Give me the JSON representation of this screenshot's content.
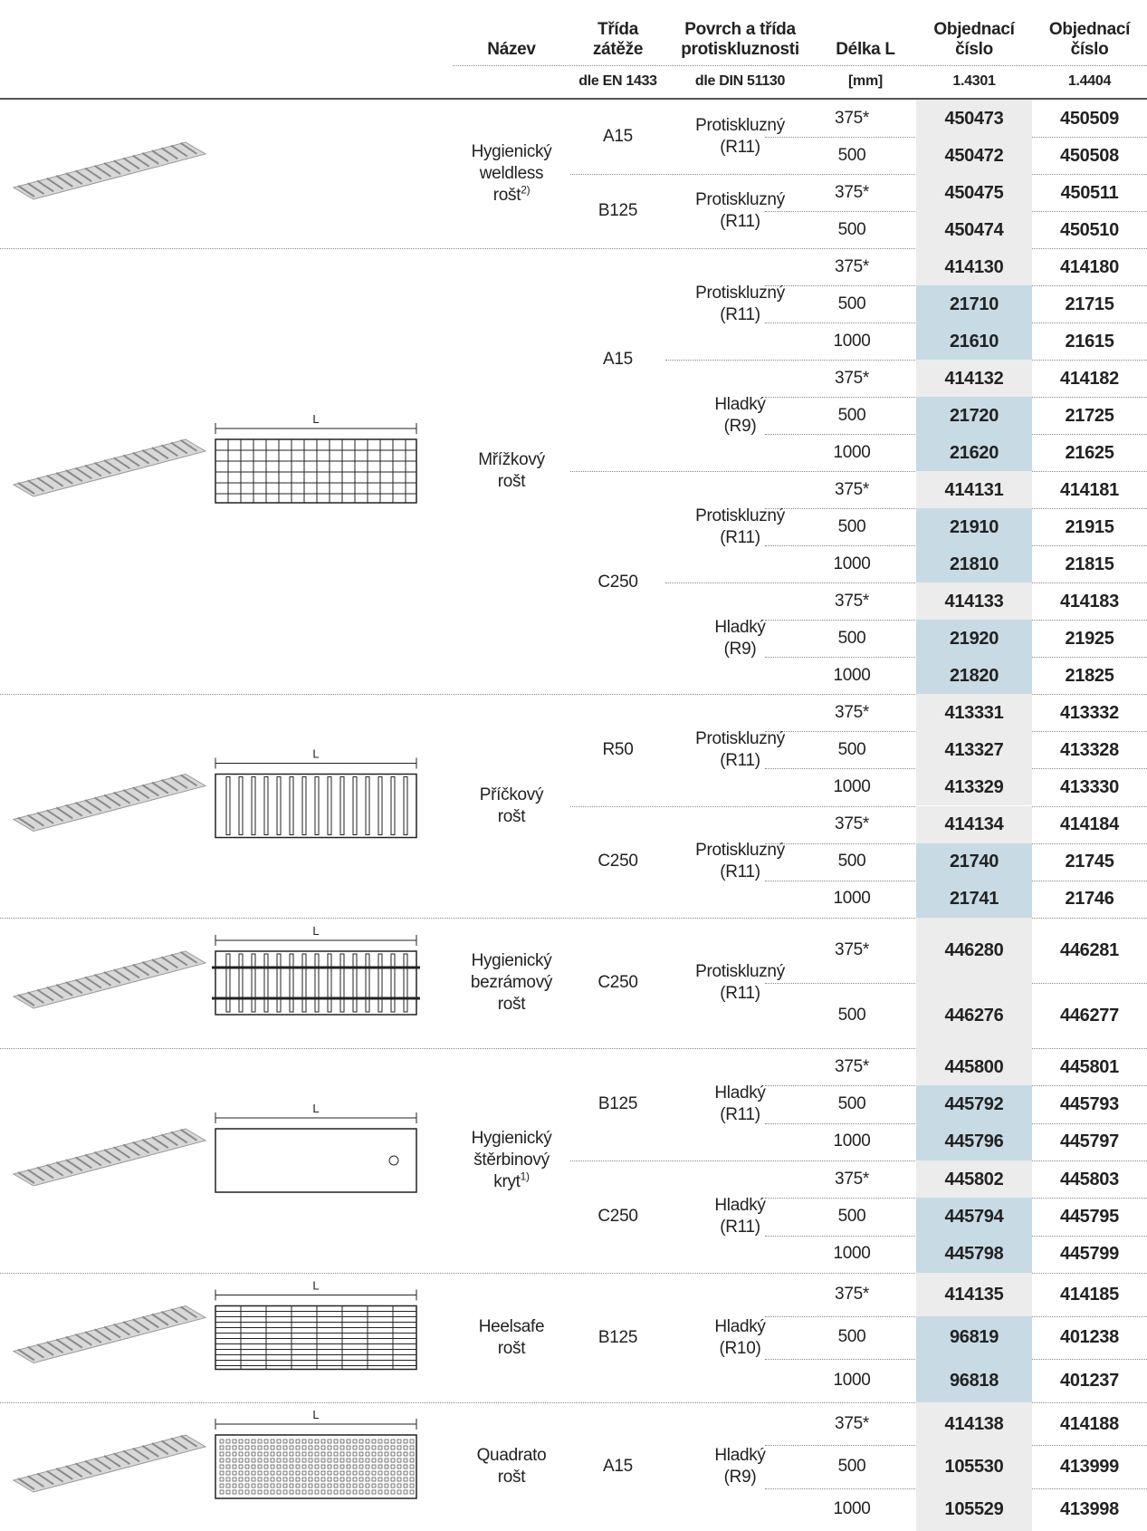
{
  "header": {
    "columns": [
      [
        "Název"
      ],
      [
        "Třída",
        "zátěže"
      ],
      [
        "Povrch a třída",
        "protiskluznosti"
      ],
      [
        "Délka L"
      ],
      [
        "Objednací",
        "číslo"
      ],
      [
        "Objednací",
        "číslo"
      ]
    ],
    "units": [
      "dle EN 1433",
      "dle DIN 51130",
      "[mm]",
      "1.4301",
      "1.4404"
    ]
  },
  "groups": [
    {
      "name": [
        "Hygienický",
        "weldless",
        "rošt"
      ],
      "note": "2)",
      "classes": [
        {
          "class": "A15",
          "surfaces": [
            {
              "surface": [
                "Protiskluzný",
                "(R11)"
              ],
              "rows": [
                {
                  "length": "375*",
                  "n1": 450473,
                  "n2": 450509,
                  "shade": "#ececec"
                },
                {
                  "length": "500",
                  "n1": 450472,
                  "n2": 450508,
                  "shade": "#ececec"
                }
              ]
            }
          ]
        },
        {
          "class": "B125",
          "surfaces": [
            {
              "surface": [
                "Protiskluzný",
                "(R11)"
              ],
              "rows": [
                {
                  "length": "375*",
                  "n1": 450475,
                  "n2": 450511,
                  "shade": "#ececec"
                },
                {
                  "length": "500",
                  "n1": 450474,
                  "n2": 450510,
                  "shade": "#ececec"
                }
              ]
            }
          ]
        }
      ]
    },
    {
      "name": [
        "Mřížkový",
        "rošt"
      ],
      "drawing_label": "L",
      "classes": [
        {
          "class": "A15",
          "surfaces": [
            {
              "surface": [
                "Protiskluzný",
                "(R11)"
              ],
              "rows": [
                {
                  "length": "375*",
                  "n1": 414130,
                  "n2": 414180,
                  "shade": "#ececec"
                },
                {
                  "length": "500",
                  "n1": 21710,
                  "n2": 21715,
                  "shade": "#c8dbe4"
                },
                {
                  "length": "1000",
                  "n1": 21610,
                  "n2": 21615,
                  "shade": "#c8dbe4"
                }
              ]
            },
            {
              "surface": [
                "Hladký",
                "(R9)"
              ],
              "rows": [
                {
                  "length": "375*",
                  "n1": 414132,
                  "n2": 414182,
                  "shade": "#ececec"
                },
                {
                  "length": "500",
                  "n1": 21720,
                  "n2": 21725,
                  "shade": "#c8dbe4"
                },
                {
                  "length": "1000",
                  "n1": 21620,
                  "n2": 21625,
                  "shade": "#c8dbe4"
                }
              ]
            }
          ]
        },
        {
          "class": "C250",
          "surfaces": [
            {
              "surface": [
                "Protiskluzný",
                "(R11)"
              ],
              "rows": [
                {
                  "length": "375*",
                  "n1": 414131,
                  "n2": 414181,
                  "shade": "#ececec"
                },
                {
                  "length": "500",
                  "n1": 21910,
                  "n2": 21915,
                  "shade": "#c8dbe4"
                },
                {
                  "length": "1000",
                  "n1": 21810,
                  "n2": 21815,
                  "shade": "#c8dbe4"
                }
              ]
            },
            {
              "surface": [
                "Hladký",
                "(R9)"
              ],
              "rows": [
                {
                  "length": "375*",
                  "n1": 414133,
                  "n2": 414183,
                  "shade": "#ececec"
                },
                {
                  "length": "500",
                  "n1": 21920,
                  "n2": 21925,
                  "shade": "#c8dbe4"
                },
                {
                  "length": "1000",
                  "n1": 21820,
                  "n2": 21825,
                  "shade": "#c8dbe4"
                }
              ]
            }
          ]
        }
      ]
    },
    {
      "name": [
        "Příčkový",
        "rošt"
      ],
      "drawing_label": "L",
      "classes": [
        {
          "class": "R50",
          "surfaces": [
            {
              "surface": [
                "Protiskluzný",
                "(R11)"
              ],
              "rows": [
                {
                  "length": "375*",
                  "n1": 413331,
                  "n2": 413332,
                  "shade": "#ececec"
                },
                {
                  "length": "500",
                  "n1": 413327,
                  "n2": 413328,
                  "shade": "#ececec"
                },
                {
                  "length": "1000",
                  "n1": 413329,
                  "n2": 413330,
                  "shade": "#ececec"
                }
              ]
            }
          ]
        },
        {
          "class": "C250",
          "surfaces": [
            {
              "surface": [
                "Protiskluzný",
                "(R11)"
              ],
              "rows": [
                {
                  "length": "375*",
                  "n1": 414134,
                  "n2": 414184,
                  "shade": "#ececec"
                },
                {
                  "length": "500",
                  "n1": 21740,
                  "n2": 21745,
                  "shade": "#c8dbe4"
                },
                {
                  "length": "1000",
                  "n1": 21741,
                  "n2": 21746,
                  "shade": "#c8dbe4"
                }
              ]
            }
          ]
        }
      ]
    },
    {
      "name": [
        "Hygienický",
        "bezrámový",
        "rošt"
      ],
      "drawing_label": "L",
      "classes": [
        {
          "class": "C250",
          "surfaces": [
            {
              "surface": [
                "Protiskluzný",
                "(R11)"
              ],
              "rows": [
                {
                  "length": "375*",
                  "n1": 446280,
                  "n2": 446281,
                  "shade": "#ececec"
                },
                {
                  "length": "500",
                  "n1": 446276,
                  "n2": 446277,
                  "shade": "#ececec"
                }
              ]
            }
          ]
        }
      ]
    },
    {
      "name": [
        "Hygienický",
        "štěrbinový",
        "kryt"
      ],
      "note": "1)",
      "drawing_label": "L",
      "classes": [
        {
          "class": "B125",
          "surfaces": [
            {
              "surface": [
                "Hladký",
                "(R11)"
              ],
              "rows": [
                {
                  "length": "375*",
                  "n1": 445800,
                  "n2": 445801,
                  "shade": "#ececec"
                },
                {
                  "length": "500",
                  "n1": 445792,
                  "n2": 445793,
                  "shade": "#c8dbe4"
                },
                {
                  "length": "1000",
                  "n1": 445796,
                  "n2": 445797,
                  "shade": "#c8dbe4"
                }
              ]
            }
          ]
        },
        {
          "class": "C250",
          "surfaces": [
            {
              "surface": [
                "Hladký",
                "(R11)"
              ],
              "rows": [
                {
                  "length": "375*",
                  "n1": 445802,
                  "n2": 445803,
                  "shade": "#ececec"
                },
                {
                  "length": "500",
                  "n1": 445794,
                  "n2": 445795,
                  "shade": "#c8dbe4"
                },
                {
                  "length": "1000",
                  "n1": 445798,
                  "n2": 445799,
                  "shade": "#c8dbe4"
                }
              ]
            }
          ]
        }
      ]
    },
    {
      "name": [
        "Heelsafe",
        "rošt"
      ],
      "drawing_label": "L",
      "classes": [
        {
          "class": "B125",
          "surfaces": [
            {
              "surface": [
                "Hladký",
                "(R10)"
              ],
              "rows": [
                {
                  "length": "375*",
                  "n1": 414135,
                  "n2": 414185,
                  "shade": "#ececec"
                },
                {
                  "length": "500",
                  "n1": 96819,
                  "n2": 401238,
                  "shade": "#c8dbe4"
                },
                {
                  "length": "1000",
                  "n1": 96818,
                  "n2": 401237,
                  "shade": "#c8dbe4"
                }
              ]
            }
          ]
        }
      ]
    },
    {
      "name": [
        "Quadrato",
        "rošt"
      ],
      "drawing_label": "L",
      "classes": [
        {
          "class": "A15",
          "surfaces": [
            {
              "surface": [
                "Hladký",
                "(R9)"
              ],
              "rows": [
                {
                  "length": "375*",
                  "n1": 414138,
                  "n2": 414188,
                  "shade": "#ececec"
                },
                {
                  "length": "500",
                  "n1": 105530,
                  "n2": 413999,
                  "shade": "#ececec"
                },
                {
                  "length": "1000",
                  "n1": 105529,
                  "n2": 413998,
                  "shade": "#ececec"
                }
              ]
            }
          ]
        }
      ]
    }
  ]
}
